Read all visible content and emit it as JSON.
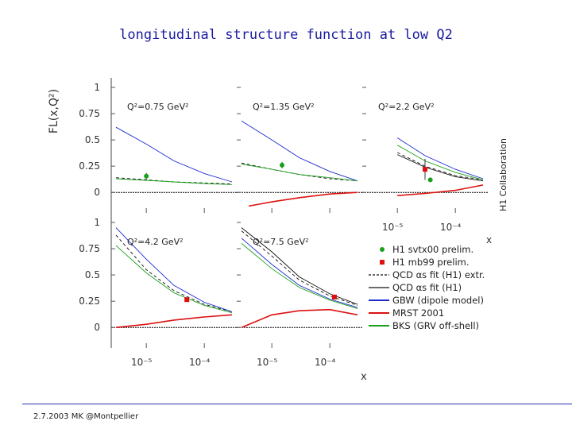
{
  "slide": {
    "title": "longitudinal structure function at low Q2",
    "footer": "2.7.2003 MK @Montpellier"
  },
  "chart_data": {
    "type": "line",
    "y_axis_label": "FL(x,Q²)",
    "x_axis_label": "x",
    "side_label": "H1 Collaboration",
    "x_scale": "log",
    "xlim": [
      3e-06,
      0.0003
    ],
    "ylim": [
      0,
      1
    ],
    "y_ticks": [
      "0",
      "0.25",
      "0.5",
      "0.75",
      "1"
    ],
    "x_ticks": [
      "10⁻⁵",
      "10⁻⁴"
    ],
    "legend_placement": "bottom-right",
    "legend": [
      {
        "label": "H1 svtx00 prelim.",
        "kind": "marker-circle",
        "color": "#1aa01a"
      },
      {
        "label": "H1 mb99 prelim.",
        "kind": "marker-square",
        "color": "#dd1111"
      },
      {
        "label": "QCD αs fit (H1) extr.",
        "kind": "dashed",
        "color": "#111111"
      },
      {
        "label": "QCD αs fit (H1)",
        "kind": "solid",
        "color": "#111111"
      },
      {
        "label": "GBW (dipole model)",
        "kind": "solid",
        "color": "#1a2ad0"
      },
      {
        "label": "MRST 2001",
        "kind": "solid",
        "color": "#dd1111"
      },
      {
        "label": "BKS (GRV off-shell)",
        "kind": "solid",
        "color": "#1aa01a"
      }
    ],
    "panels": [
      {
        "label": "Q²=0.75 GeV²",
        "points": [
          {
            "x": 1e-05,
            "y": 0.155,
            "err": 0.03,
            "series": "H1 svtx00 prelim."
          }
        ],
        "curves": [
          {
            "name": "QCD αs fit (H1) extr.",
            "x": [
              3e-06,
              1e-05,
              3e-05,
              0.0001,
              0.0003
            ],
            "y": [
              0.14,
              0.12,
              0.1,
              0.09,
              0.08
            ]
          },
          {
            "name": "GBW (dipole model)",
            "x": [
              3e-06,
              1e-05,
              3e-05,
              0.0001,
              0.0003
            ],
            "y": [
              0.62,
              0.46,
              0.3,
              0.18,
              0.1
            ]
          },
          {
            "name": "BKS (GRV off-shell)",
            "x": [
              3e-06,
              1e-05,
              3e-05,
              0.0001,
              0.0003
            ],
            "y": [
              0.13,
              0.115,
              0.1,
              0.085,
              0.075
            ]
          }
        ]
      },
      {
        "label": "Q²=1.35 GeV²",
        "points": [
          {
            "x": 1.5e-05,
            "y": 0.26,
            "err": 0.03,
            "series": "H1 svtx00 prelim."
          }
        ],
        "curves": [
          {
            "name": "QCD αs fit (H1) extr.",
            "x": [
              3e-06,
              1e-05,
              3e-05,
              0.0001,
              0.0003
            ],
            "y": [
              0.28,
              0.22,
              0.17,
              0.13,
              0.11
            ]
          },
          {
            "name": "GBW (dipole model)",
            "x": [
              3e-06,
              1e-05,
              3e-05,
              0.0001,
              0.0003
            ],
            "y": [
              0.68,
              0.5,
              0.33,
              0.2,
              0.11
            ]
          },
          {
            "name": "BKS (GRV off-shell)",
            "x": [
              3e-06,
              1e-05,
              3e-05,
              0.0001,
              0.0003
            ],
            "y": [
              0.27,
              0.22,
              0.17,
              0.14,
              0.11
            ]
          },
          {
            "name": "MRST 2001",
            "x": [
              4e-06,
              1e-05,
              3e-05,
              0.0001,
              0.0003
            ],
            "y": [
              -0.13,
              -0.09,
              -0.05,
              -0.015,
              0.0
            ]
          }
        ]
      },
      {
        "label": "Q²=2.2 GeV²",
        "points": [
          {
            "x": 3e-05,
            "y": 0.22,
            "err": 0.1,
            "series": "H1 mb99 prelim."
          },
          {
            "x": 3.7e-05,
            "y": 0.12,
            "err": 0.02,
            "series": "H1 svtx00 prelim."
          }
        ],
        "curves": [
          {
            "name": "QCD αs fit (H1) extr.",
            "x": [
              1e-05,
              3e-05,
              0.0001,
              0.0003
            ],
            "y": [
              0.38,
              0.25,
              0.16,
              0.12
            ]
          },
          {
            "name": "QCD αs fit (H1)",
            "x": [
              1e-05,
              3e-05,
              0.0001,
              0.0003
            ],
            "y": [
              0.36,
              0.24,
              0.15,
              0.11
            ]
          },
          {
            "name": "GBW (dipole model)",
            "x": [
              1e-05,
              3e-05,
              0.0001,
              0.0003
            ],
            "y": [
              0.52,
              0.35,
              0.22,
              0.13
            ]
          },
          {
            "name": "BKS (GRV off-shell)",
            "x": [
              1e-05,
              3e-05,
              0.0001,
              0.0003
            ],
            "y": [
              0.45,
              0.3,
              0.19,
              0.12
            ]
          },
          {
            "name": "MRST 2001",
            "x": [
              1e-05,
              3e-05,
              0.0001,
              0.0003
            ],
            "y": [
              -0.03,
              -0.01,
              0.02,
              0.07
            ]
          }
        ]
      },
      {
        "label": "Q²=4.2 GeV²",
        "points": [
          {
            "x": 5e-05,
            "y": 0.265,
            "err": 0.02,
            "series": "H1 mb99 prelim."
          }
        ],
        "curves": [
          {
            "name": "QCD αs fit (H1) extr.",
            "x": [
              3e-06,
              1e-05,
              3e-05,
              0.0001,
              0.0003
            ],
            "y": [
              0.88,
              0.55,
              0.35,
              0.22,
              0.15
            ]
          },
          {
            "name": "GBW (dipole model)",
            "x": [
              3e-06,
              1e-05,
              3e-05,
              0.0001,
              0.0003
            ],
            "y": [
              0.95,
              0.65,
              0.4,
              0.24,
              0.15
            ]
          },
          {
            "name": "BKS (GRV off-shell)",
            "x": [
              3e-06,
              1e-05,
              3e-05,
              0.0001,
              0.0003
            ],
            "y": [
              0.78,
              0.52,
              0.33,
              0.21,
              0.14
            ]
          },
          {
            "name": "MRST 2001",
            "x": [
              3e-06,
              1e-05,
              3e-05,
              0.0001,
              0.0003
            ],
            "y": [
              0.0,
              0.03,
              0.07,
              0.1,
              0.12
            ]
          }
        ]
      },
      {
        "label": "Q²=7.5 GeV²",
        "points": [
          {
            "x": 0.00012,
            "y": 0.29,
            "err": 0.02,
            "series": "H1 mb99 prelim."
          }
        ],
        "curves": [
          {
            "name": "QCD αs fit (H1) extr.",
            "x": [
              3e-06,
              1e-05,
              3e-05,
              0.0001,
              0.0003
            ],
            "y": [
              0.92,
              0.68,
              0.45,
              0.3,
              0.21
            ]
          },
          {
            "name": "QCD αs fit (H1)",
            "x": [
              3e-06,
              1e-05,
              3e-05,
              0.0001,
              0.0003
            ],
            "y": [
              0.95,
              0.72,
              0.48,
              0.32,
              0.22
            ]
          },
          {
            "name": "GBW (dipole model)",
            "x": [
              3e-06,
              1e-05,
              3e-05,
              0.0001,
              0.0003
            ],
            "y": [
              0.85,
              0.6,
              0.4,
              0.27,
              0.19
            ]
          },
          {
            "name": "BKS (GRV off-shell)",
            "x": [
              3e-06,
              1e-05,
              3e-05,
              0.0001,
              0.0003
            ],
            "y": [
              0.8,
              0.56,
              0.38,
              0.26,
              0.18
            ]
          },
          {
            "name": "MRST 2001",
            "x": [
              3e-06,
              1e-05,
              3e-05,
              0.0001,
              0.0003
            ],
            "y": [
              0.0,
              0.12,
              0.16,
              0.17,
              0.12
            ]
          }
        ]
      }
    ]
  }
}
